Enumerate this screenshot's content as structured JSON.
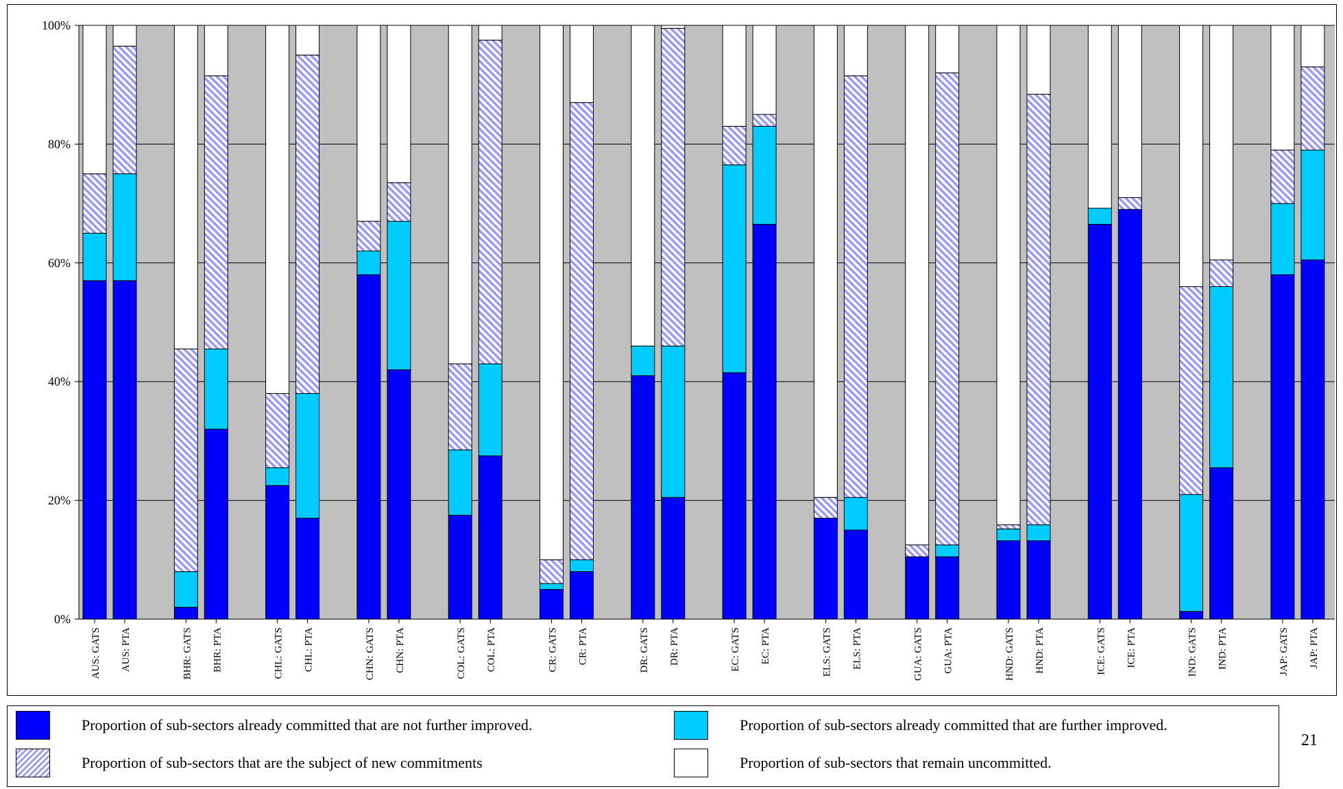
{
  "chart_data": {
    "type": "bar",
    "stacked": true,
    "grid": true,
    "legend_position": "bottom",
    "plot_background": "#c0c0c0",
    "ylim": [
      0,
      100
    ],
    "yticks": [
      "0%",
      "20%",
      "40%",
      "60%",
      "80%",
      "100%"
    ],
    "categories": [
      "AUS: GATS",
      "AUS: PTA",
      "BHR: GATS",
      "BHR: PTA",
      "CHL: GATS",
      "CHL: PTA",
      "CHN: GATS",
      "CHN: PTA",
      "COL: GATS",
      "COL: PTA",
      "CR: GATS",
      "CR: PTA",
      "DR: GATS",
      "DR: PTA",
      "EC: GATS",
      "EC: PTA",
      "ELS: GATS",
      "ELS: PTA",
      "GUA: GATS",
      "GUA: PTA",
      "HND: GATS",
      "HND: PTA",
      "ICE: GATS",
      "ICE: PTA",
      "IND: GATS",
      "IND: PTA",
      "JAP: GATS",
      "JAP: PTA"
    ],
    "series": [
      {
        "name": "Proportion of sub-sectors already committed that are not further improved.",
        "color": "#0000ff",
        "fill": "solid",
        "values": [
          57,
          57,
          2,
          32,
          22.5,
          17,
          58,
          42,
          17.5,
          27.5,
          5,
          8,
          41,
          20.5,
          41.5,
          66.5,
          17,
          15,
          10.5,
          10.5,
          13.2,
          13.2,
          66.5,
          69,
          1.3,
          25.5,
          58,
          60.5
        ]
      },
      {
        "name": "Proportion of sub-sectors already committed that are further improved.",
        "color": "#00ccff",
        "fill": "solid",
        "values": [
          8,
          18,
          6,
          13.5,
          3,
          21,
          4,
          25,
          11,
          15.5,
          1,
          2,
          5,
          25.5,
          35,
          16.5,
          0,
          5.5,
          0,
          2,
          2,
          2.7,
          2.7,
          0,
          19.7,
          30.5,
          12,
          18.5
        ]
      },
      {
        "name": "Proportion of sub-sectors that are the subject of new commitments",
        "color": "#9999ff",
        "fill": "hatched",
        "values": [
          10,
          21.5,
          37.5,
          46,
          12.5,
          57,
          5,
          6.5,
          14.5,
          54.5,
          4,
          77,
          0,
          53.5,
          6.5,
          2,
          3.5,
          71,
          2,
          79.5,
          0.7,
          72.5,
          0,
          2,
          35,
          4.5,
          9,
          14
        ]
      },
      {
        "name": "Proportion of sub-sectors that remain uncommitted.",
        "color": "#ffffff",
        "fill": "solid",
        "values": [
          25,
          3.5,
          54.5,
          8.5,
          62,
          5,
          33,
          26.5,
          57,
          2.5,
          90,
          13,
          54,
          0.5,
          17,
          15,
          79.5,
          8.5,
          87.5,
          8,
          84.1,
          11.6,
          30.8,
          29,
          44,
          39.5,
          21,
          7
        ]
      }
    ]
  },
  "legend": {
    "item1": "Proportion of sub-sectors already committed that are not further improved.",
    "item2": "Proportion of sub-sectors already committed that are further improved.",
    "item3": "Proportion of sub-sectors that are the subject of new commitments",
    "item4": "Proportion of sub-sectors that remain uncommitted."
  },
  "page_number": "21"
}
